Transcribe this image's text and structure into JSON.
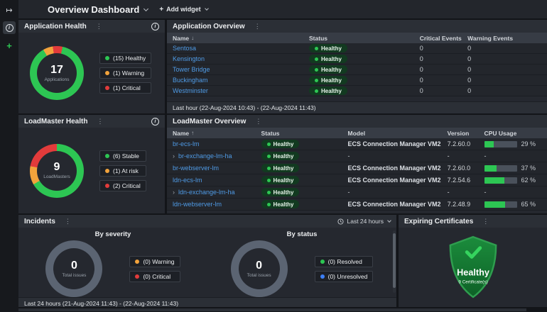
{
  "topbar": {
    "title": "Overview Dashboard",
    "add_widget_label": "Add widget"
  },
  "app_health": {
    "title": "Application Health",
    "center_value": "17",
    "center_label": "Applications",
    "start_deg": 330,
    "segments": [
      {
        "label": "Warning",
        "count": 1,
        "color": "#f2a33c"
      },
      {
        "label": "Critical",
        "count": 1,
        "color": "#e23b3b"
      },
      {
        "label": "Healthy",
        "count": 15,
        "color": "#2dc653"
      }
    ],
    "legend": [
      {
        "count": "(15)",
        "label": "Healthy",
        "color": "#2dc653"
      },
      {
        "count": "(1)",
        "label": "Warning",
        "color": "#f2a33c"
      },
      {
        "count": "(1)",
        "label": "Critical",
        "color": "#e23b3b"
      }
    ]
  },
  "app_overview": {
    "title": "Application Overview",
    "columns": [
      "Name",
      "Status",
      "Critical Events",
      "Warning Events"
    ],
    "name_sort_icon": "↓",
    "rows": [
      {
        "name": "Sentosa",
        "status": "Healthy",
        "critical": "0",
        "warning": "0"
      },
      {
        "name": "Kensington",
        "status": "Healthy",
        "critical": "0",
        "warning": "0"
      },
      {
        "name": "Tower Bridge",
        "status": "Healthy",
        "critical": "0",
        "warning": "0"
      },
      {
        "name": "Buckingham",
        "status": "Healthy",
        "critical": "0",
        "warning": "0"
      },
      {
        "name": "Westminster",
        "status": "Healthy",
        "critical": "0",
        "warning": "0"
      }
    ],
    "footer": "Last hour (22-Aug-2024 10:43) - (22-Aug-2024 11:43)"
  },
  "lm_health": {
    "title": "LoadMaster Health",
    "center_value": "9",
    "center_label": "LoadMasters",
    "start_deg": 0,
    "segments": [
      {
        "label": "Stable",
        "count": 6,
        "color": "#2dc653"
      },
      {
        "label": "At risk",
        "count": 1,
        "color": "#f2a33c"
      },
      {
        "label": "Critical",
        "count": 2,
        "color": "#e23b3b"
      }
    ],
    "legend": [
      {
        "count": "(6)",
        "label": "Stable",
        "color": "#2dc653"
      },
      {
        "count": "(1)",
        "label": "At risk",
        "color": "#f2a33c"
      },
      {
        "count": "(2)",
        "label": "Critical",
        "color": "#e23b3b"
      }
    ]
  },
  "lm_overview": {
    "title": "LoadMaster Overview",
    "columns": [
      "Name",
      "Status",
      "Model",
      "Version",
      "CPU Usage"
    ],
    "name_sort_icon": "↑",
    "rows": [
      {
        "name": "br-ecs-lm",
        "expandable": false,
        "status": "Healthy",
        "model": "ECS Connection Manager VM2",
        "version": "7.2.60.0",
        "cpu_label": "29 %",
        "cpu_pct": 29
      },
      {
        "name": "br-exchange-lm-ha",
        "expandable": true,
        "status": "Healthy",
        "model": "-",
        "version": "-",
        "cpu_label": "-",
        "cpu_pct": null
      },
      {
        "name": "br-webserver-lm",
        "expandable": false,
        "status": "Healthy",
        "model": "ECS Connection Manager VM2",
        "version": "7.2.60.0",
        "cpu_label": "37 %",
        "cpu_pct": 37
      },
      {
        "name": "ldn-ecs-lm",
        "expandable": false,
        "status": "Healthy",
        "model": "ECS Connection Manager VM2",
        "version": "7.2.54.6",
        "cpu_label": "62 %",
        "cpu_pct": 62
      },
      {
        "name": "ldn-exchange-lm-ha",
        "expandable": true,
        "status": "Healthy",
        "model": "-",
        "version": "-",
        "cpu_label": "-",
        "cpu_pct": null
      },
      {
        "name": "ldn-webserver-lm",
        "expandable": false,
        "status": "Healthy",
        "model": "ECS Connection Manager VM2",
        "version": "7.2.48.9",
        "cpu_label": "65 %",
        "cpu_pct": 65
      }
    ]
  },
  "incidents": {
    "title": "Incidents",
    "range_label": "Last 24 hours",
    "ring_color": "#5b6472",
    "by_severity": {
      "title": "By severity",
      "center_value": "0",
      "center_label": "Total issues",
      "legend": [
        {
          "count": "(0)",
          "label": "Warning",
          "color": "#f2a33c"
        },
        {
          "count": "(0)",
          "label": "Critical",
          "color": "#e23b3b"
        }
      ]
    },
    "by_status": {
      "title": "By status",
      "center_value": "0",
      "center_label": "Total issues",
      "legend": [
        {
          "count": "(0)",
          "label": "Resolved",
          "color": "#2dc653"
        },
        {
          "count": "(0)",
          "label": "Unresolved",
          "color": "#3d7ff5"
        }
      ]
    },
    "footer": "Last 24 hours (21-Aug-2024 11:43) - (22-Aug-2024 11:43)"
  },
  "expiring_certificates": {
    "title": "Expiring Certificates",
    "status_label": "Healthy",
    "sub_label": "9 Certificate(s)"
  }
}
